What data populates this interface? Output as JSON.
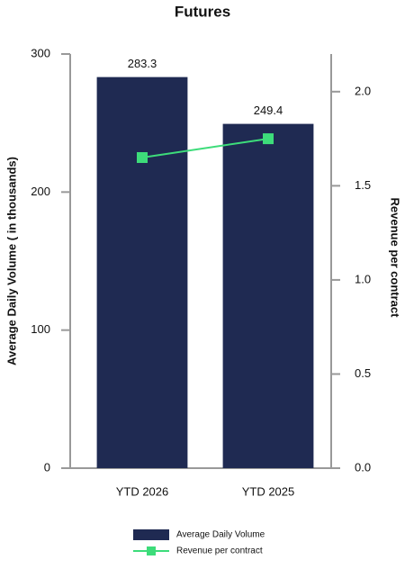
{
  "chart_data": {
    "type": "bar",
    "title": "Futures",
    "y_label": "Average Daily Volume ( in thousands)",
    "y2_label": "Revenue per contract",
    "categories": [
      "YTD 2026",
      "YTD 2025"
    ],
    "series": [
      {
        "name": "Average Daily Volume",
        "color": "#1f2a52",
        "values": [
          283.3,
          249.4
        ],
        "value_labels": [
          "283.3",
          "249.4"
        ]
      },
      {
        "name": "Revenue per contract",
        "type": "line",
        "axis": "y2",
        "color": "#3ddc7a",
        "values": [
          1.65,
          1.75
        ]
      }
    ],
    "ylim": [
      0,
      300
    ],
    "yticks": [
      0,
      100,
      200,
      300
    ],
    "y2lim": [
      0,
      2.2
    ],
    "y2ticks": [
      {
        "value": 0,
        "label": "0.0"
      },
      0.5,
      {
        "value": 1,
        "label": "1.0"
      },
      1.5,
      {
        "value": 2,
        "label": "2.0"
      }
    ],
    "legend": "bottom"
  }
}
